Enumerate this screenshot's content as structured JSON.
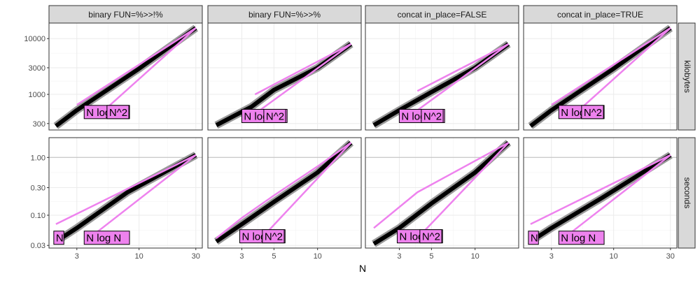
{
  "chart_data": {
    "type": "line",
    "x_axis_label": "N",
    "x_scale": "log10",
    "facet_columns": [
      "binary FUN=%>>!%",
      "binary FUN=%>>%",
      "concat in_place=FALSE",
      "concat in_place=TRUE"
    ],
    "facet_rows": [
      "kilobytes",
      "seconds"
    ],
    "colors": {
      "reference_lines": "#ee82ee",
      "label_fill": "#ee82ee",
      "measurement": "#000000",
      "strip_bg": "#d9d9d9",
      "grid": "#ebebeb"
    },
    "rows": {
      "kilobytes": {
        "y_scale": "log10",
        "y_ticks": [
          300,
          1000,
          3000,
          10000
        ],
        "y_tick_labels": [
          "300",
          "1000",
          "3000",
          "10000"
        ],
        "ylim": [
          230,
          19000
        ]
      },
      "seconds": {
        "y_scale": "log10",
        "y_ticks": [
          0.03,
          0.1,
          0.3,
          1.0
        ],
        "y_tick_labels": [
          "0.03",
          "0.10",
          "0.30",
          "1.00"
        ],
        "ylim": [
          0.027,
          2.2
        ]
      }
    },
    "panels": [
      {
        "col": 0,
        "row": "kilobytes",
        "xlim": [
          1.75,
          34
        ],
        "x_ticks": [
          3,
          10,
          30
        ],
        "x_tick_labels": [
          "3",
          "10",
          "30"
        ],
        "measurement": {
          "x": [
            2,
            3,
            10,
            30
          ],
          "y": [
            270,
            520,
            2900,
            15500
          ]
        },
        "ref_nlogn": {
          "x": [
            3,
            30
          ],
          "y": [
            650,
            15500
          ]
        },
        "ref_n2": {
          "x": [
            5,
            30
          ],
          "y": [
            500,
            15500
          ]
        },
        "labels": [
          {
            "text": "N log N",
            "x": 3.6,
            "y": 400
          },
          {
            "text": "N^2",
            "x": 5.6,
            "y": 400
          }
        ]
      },
      {
        "col": 1,
        "row": "kilobytes",
        "xlim": [
          1.75,
          20
        ],
        "x_ticks": [
          3,
          5,
          10
        ],
        "x_tick_labels": [
          "3",
          "5",
          "10"
        ],
        "measurement": {
          "x": [
            2,
            3.5,
            5,
            10,
            17
          ],
          "y": [
            280,
            600,
            1200,
            3000,
            8000
          ]
        },
        "ref_nlogn": {
          "x": [
            3.7,
            17
          ],
          "y": [
            1000,
            8000
          ]
        },
        "ref_n2": {
          "x": [
            4,
            17
          ],
          "y": [
            520,
            8000
          ]
        },
        "labels": [
          {
            "text": "N log N",
            "x": 3.1,
            "y": 340
          },
          {
            "text": "N^2",
            "x": 4.4,
            "y": 340
          }
        ]
      },
      {
        "col": 2,
        "row": "kilobytes",
        "xlim": [
          1.75,
          20
        ],
        "x_ticks": [
          3,
          5,
          10
        ],
        "x_tick_labels": [
          "3",
          "5",
          "10"
        ],
        "measurement": {
          "x": [
            2,
            3,
            5,
            10,
            17
          ],
          "y": [
            280,
            520,
            1100,
            3000,
            8000
          ]
        },
        "ref_nlogn": {
          "x": [
            4,
            17
          ],
          "y": [
            1150,
            8000
          ]
        },
        "ref_n2": {
          "x": [
            4,
            17
          ],
          "y": [
            520,
            8000
          ]
        },
        "labels": [
          {
            "text": "N log N",
            "x": 3.1,
            "y": 340
          },
          {
            "text": "N^2",
            "x": 4.4,
            "y": 340
          }
        ]
      },
      {
        "col": 3,
        "row": "kilobytes",
        "xlim": [
          1.75,
          34
        ],
        "x_ticks": [
          3,
          10,
          30
        ],
        "x_tick_labels": [
          "3",
          "10",
          "30"
        ],
        "measurement": {
          "x": [
            2,
            3,
            10,
            30
          ],
          "y": [
            270,
            520,
            2900,
            15500
          ]
        },
        "ref_nlogn": {
          "x": [
            3,
            30
          ],
          "y": [
            650,
            15500
          ]
        },
        "ref_n2": {
          "x": [
            5,
            30
          ],
          "y": [
            500,
            15500
          ]
        },
        "labels": [
          {
            "text": "N log N",
            "x": 3.6,
            "y": 400
          },
          {
            "text": "N^2",
            "x": 5.6,
            "y": 400
          }
        ]
      },
      {
        "col": 0,
        "row": "seconds",
        "xlim": [
          1.75,
          34
        ],
        "x_ticks": [
          3,
          10,
          30
        ],
        "x_tick_labels": [
          "3",
          "10",
          "30"
        ],
        "measurement": {
          "x": [
            2,
            3,
            8,
            30
          ],
          "y": [
            0.035,
            0.06,
            0.25,
            1.1
          ]
        },
        "ref_nlogn": {
          "x": [
            2,
            30
          ],
          "y": [
            0.07,
            1.1
          ]
        },
        "ref_n2": {
          "x": [
            3.5,
            30
          ],
          "y": [
            0.035,
            1.1
          ]
        },
        "labels": [
          {
            "text": "N",
            "x": 2.0,
            "y": 0.034
          },
          {
            "text": "N log N",
            "x": 3.6,
            "y": 0.034
          }
        ]
      },
      {
        "col": 1,
        "row": "seconds",
        "xlim": [
          1.75,
          20
        ],
        "x_ticks": [
          3,
          5,
          10
        ],
        "x_tick_labels": [
          "3",
          "5",
          "10"
        ],
        "measurement": {
          "x": [
            2,
            3,
            5,
            10,
            17
          ],
          "y": [
            0.035,
            0.07,
            0.17,
            0.55,
            1.8
          ]
        },
        "ref_nlogn": {
          "x": [
            2,
            3,
            5,
            10,
            17
          ],
          "y": [
            0.04,
            0.09,
            0.22,
            0.7,
            1.8
          ]
        },
        "ref_n2": {
          "x": [
            4.1,
            17
          ],
          "y": [
            0.04,
            1.8
          ]
        },
        "labels": [
          {
            "text": "N log N",
            "x": 3.0,
            "y": 0.036
          },
          {
            "text": "N^2",
            "x": 4.3,
            "y": 0.036
          }
        ]
      },
      {
        "col": 2,
        "row": "seconds",
        "xlim": [
          1.75,
          20
        ],
        "x_ticks": [
          3,
          5,
          10
        ],
        "x_tick_labels": [
          "3",
          "5",
          "10"
        ],
        "measurement": {
          "x": [
            2,
            3,
            5,
            10,
            17
          ],
          "y": [
            0.032,
            0.06,
            0.16,
            0.55,
            1.8
          ]
        },
        "ref_nlogn": {
          "x": [
            2,
            4,
            17
          ],
          "y": [
            0.06,
            0.25,
            1.8
          ]
        },
        "ref_n2": {
          "x": [
            4,
            17
          ],
          "y": [
            0.04,
            1.8
          ]
        },
        "labels": [
          {
            "text": "N log N",
            "x": 3.0,
            "y": 0.036
          },
          {
            "text": "N^2",
            "x": 4.3,
            "y": 0.036
          }
        ]
      },
      {
        "col": 3,
        "row": "seconds",
        "xlim": [
          1.75,
          34
        ],
        "x_ticks": [
          3,
          10,
          30
        ],
        "x_tick_labels": [
          "3",
          "10",
          "30"
        ],
        "measurement": {
          "x": [
            2,
            3,
            8,
            30
          ],
          "y": [
            0.035,
            0.06,
            0.2,
            1.1
          ]
        },
        "ref_nlogn": {
          "x": [
            2,
            30
          ],
          "y": [
            0.07,
            1.1
          ]
        },
        "ref_n2": {
          "x": [
            3.5,
            30
          ],
          "y": [
            0.035,
            1.1
          ]
        },
        "labels": [
          {
            "text": "N",
            "x": 2.0,
            "y": 0.034
          },
          {
            "text": "N log N",
            "x": 3.6,
            "y": 0.034
          }
        ]
      }
    ]
  }
}
